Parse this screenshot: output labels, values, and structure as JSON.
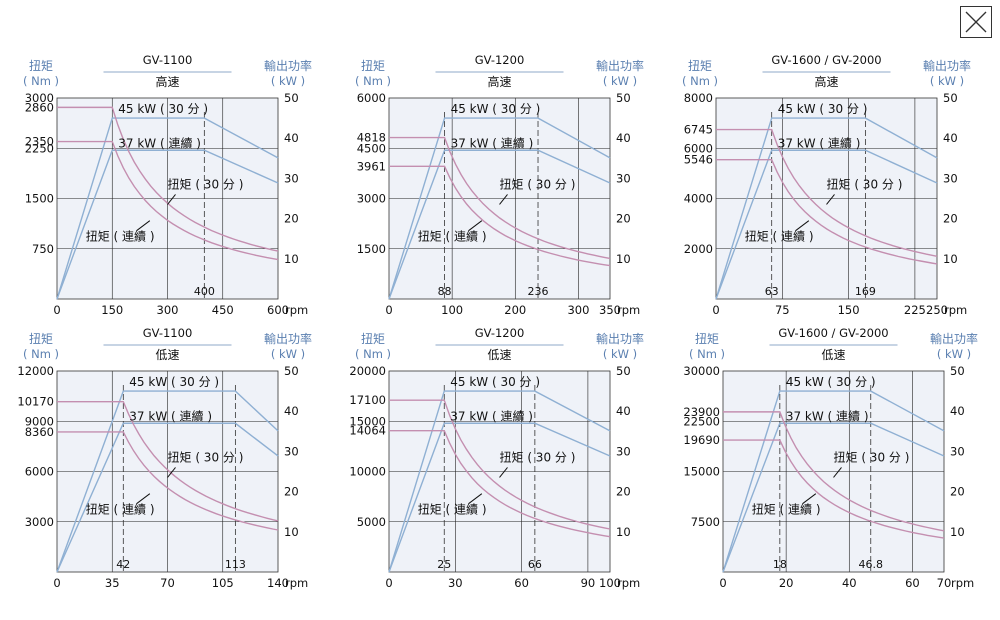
{
  "close_button": {
    "icon": "close-icon"
  },
  "colors": {
    "plot_bg": "#eff2f8",
    "power_line": "#8fb0d3",
    "torque_line": "#c48fb0",
    "axis_label": "#5a7fb0",
    "grid": "#222222"
  },
  "chart_data": [
    {
      "type": "line",
      "title": "GV-1100",
      "subtitle": "高速",
      "left_label": [
        "扭矩",
        "( Nm )"
      ],
      "right_label": [
        "輸出功率",
        "( kW )"
      ],
      "x_unit": "rpm",
      "xlim": [
        0,
        600
      ],
      "ylim_torque": [
        0,
        3000
      ],
      "ylim_power": [
        0,
        50
      ],
      "x_ticks": [
        "0",
        "150",
        "300",
        "450",
        "600"
      ],
      "x_grid": [
        150,
        300,
        450
      ],
      "y_ticks": [
        750,
        1500,
        2250,
        2350,
        2860,
        3000
      ],
      "y_grid": [
        750,
        1500,
        2250
      ],
      "power_ticks": [
        10,
        20,
        30,
        40,
        50
      ],
      "power_max": 50,
      "base_speed": 150,
      "max_speed": 600,
      "p30": 45,
      "pcont": 37,
      "t30": 2860,
      "tcont": 2350,
      "marks": [
        {
          "x": 400,
          "label": "400"
        }
      ],
      "series_labels": {
        "p30": "45 kW ( 30 分 )",
        "pcont": "37 kW ( 連續 )",
        "t30": "扭矩 ( 30 分 )",
        "tcont": "扭矩 ( 連續 )"
      }
    },
    {
      "type": "line",
      "title": "GV-1200",
      "subtitle": "高速",
      "left_label": [
        "扭矩",
        "( Nm )"
      ],
      "right_label": [
        "輸出功率",
        "( kW )"
      ],
      "x_unit": "rpm",
      "xlim": [
        0,
        350
      ],
      "ylim_torque": [
        0,
        6000
      ],
      "ylim_power": [
        0,
        50
      ],
      "x_ticks": [
        "0",
        "100",
        "200",
        "300",
        "350"
      ],
      "x_grid": [
        100,
        200,
        300
      ],
      "y_ticks": [
        1500,
        3000,
        3961,
        4500,
        4818,
        6000
      ],
      "y_grid": [
        1500,
        3000,
        4500
      ],
      "power_ticks": [
        10,
        20,
        30,
        40,
        50
      ],
      "power_max": 50,
      "base_speed": 88,
      "max_speed": 350,
      "p30": 45,
      "pcont": 37,
      "t30": 4818,
      "tcont": 3961,
      "marks": [
        {
          "x": 88,
          "label": "88"
        },
        {
          "x": 236,
          "label": "236"
        }
      ],
      "series_labels": {
        "p30": "45 kW ( 30 分 )",
        "pcont": "37 kW ( 連續 )",
        "t30": "扭矩 ( 30 分 )",
        "tcont": "扭矩 ( 連續 )"
      }
    },
    {
      "type": "line",
      "title": "GV-1600 / GV-2000",
      "subtitle": "高速",
      "left_label": [
        "扭矩",
        "( Nm )"
      ],
      "right_label": [
        "輸出功率",
        "( kW )"
      ],
      "x_unit": "rpm",
      "xlim": [
        0,
        250
      ],
      "ylim_torque": [
        0,
        8000
      ],
      "ylim_power": [
        0,
        50
      ],
      "x_ticks": [
        "0",
        "75",
        "150",
        "225",
        "250"
      ],
      "x_grid": [
        75,
        150,
        225
      ],
      "y_ticks": [
        2000,
        4000,
        5546,
        6000,
        6745,
        8000
      ],
      "y_grid": [
        2000,
        4000,
        6000
      ],
      "power_ticks": [
        10,
        20,
        30,
        40,
        50
      ],
      "power_max": 50,
      "base_speed": 63,
      "max_speed": 250,
      "p30": 45,
      "pcont": 37,
      "t30": 6745,
      "tcont": 5546,
      "marks": [
        {
          "x": 63,
          "label": "63"
        },
        {
          "x": 169,
          "label": "169"
        }
      ],
      "series_labels": {
        "p30": "45 kW ( 30 分 )",
        "pcont": "37 kW ( 連續 )",
        "t30": "扭矩 ( 30 分 )",
        "tcont": "扭矩 ( 連續 )"
      }
    },
    {
      "type": "line",
      "title": "GV-1100",
      "subtitle": "低速",
      "left_label": [
        "扭矩",
        "( Nm )"
      ],
      "right_label": [
        "輸出功率",
        "( kW )"
      ],
      "x_unit": "rpm",
      "xlim": [
        0,
        140
      ],
      "ylim_torque": [
        0,
        12000
      ],
      "ylim_power": [
        0,
        50
      ],
      "x_ticks": [
        "0",
        "35",
        "70",
        "105",
        "140"
      ],
      "x_grid": [
        35,
        70,
        105
      ],
      "y_ticks": [
        3000,
        6000,
        8360,
        9000,
        10170,
        12000
      ],
      "y_grid": [
        3000,
        6000,
        9000
      ],
      "power_ticks": [
        10,
        20,
        30,
        40,
        50
      ],
      "power_max": 50,
      "base_speed": 42,
      "max_speed": 140,
      "p30": 45,
      "pcont": 37,
      "t30": 10170,
      "tcont": 8360,
      "marks": [
        {
          "x": 42,
          "label": "42"
        },
        {
          "x": 113,
          "label": "113"
        }
      ],
      "series_labels": {
        "p30": "45 kW ( 30 分 )",
        "pcont": "37 kW ( 連續 )",
        "t30": "扭矩 ( 30 分 )",
        "tcont": "扭矩 ( 連續 )"
      }
    },
    {
      "type": "line",
      "title": "GV-1200",
      "subtitle": "低速",
      "left_label": [
        "扭矩",
        "( Nm )"
      ],
      "right_label": [
        "輸出功率",
        "( kW )"
      ],
      "x_unit": "rpm",
      "xlim": [
        0,
        100
      ],
      "ylim_torque": [
        0,
        20000
      ],
      "ylim_power": [
        0,
        50
      ],
      "x_ticks": [
        "0",
        "30",
        "60",
        "90",
        "100"
      ],
      "x_grid": [
        30,
        60,
        90
      ],
      "y_ticks": [
        5000,
        10000,
        14064,
        15000,
        17100,
        20000
      ],
      "y_grid": [
        5000,
        10000,
        15000
      ],
      "power_ticks": [
        10,
        20,
        30,
        40,
        50
      ],
      "power_max": 50,
      "base_speed": 25,
      "max_speed": 100,
      "p30": 45,
      "pcont": 37,
      "t30": 17100,
      "tcont": 14064,
      "marks": [
        {
          "x": 25,
          "label": "25"
        },
        {
          "x": 66,
          "label": "66"
        }
      ],
      "series_labels": {
        "p30": "45 kW ( 30 分 )",
        "pcont": "37 kW ( 連續 )",
        "t30": "扭矩 ( 30 分 )",
        "tcont": "扭矩 ( 連續 )"
      }
    },
    {
      "type": "line",
      "title": "GV-1600 / GV-2000",
      "subtitle": "低速",
      "left_label": [
        "扭矩",
        "( Nm )"
      ],
      "right_label": [
        "輸出功率",
        "( kW )"
      ],
      "x_unit": "rpm",
      "xlim": [
        0,
        70
      ],
      "ylim_torque": [
        0,
        30000
      ],
      "ylim_power": [
        0,
        50
      ],
      "x_ticks": [
        "0",
        "20",
        "40",
        "60",
        "70"
      ],
      "x_grid": [
        20,
        40,
        60
      ],
      "y_ticks": [
        7500,
        15000,
        19690,
        22500,
        23900,
        30000
      ],
      "y_grid": [
        7500,
        15000,
        22500
      ],
      "power_ticks": [
        10,
        20,
        30,
        40,
        50
      ],
      "power_max": 50,
      "base_speed": 18,
      "max_speed": 70,
      "p30": 45,
      "pcont": 37,
      "t30": 23900,
      "tcont": 19690,
      "marks": [
        {
          "x": 18,
          "label": "18"
        },
        {
          "x": 46.8,
          "label": "46.8"
        }
      ],
      "series_labels": {
        "p30": "45 kW ( 30 分 )",
        "pcont": "37 kW ( 連續 )",
        "t30": "扭矩 ( 30 分 )",
        "tcont": "扭矩 ( 連續 )"
      }
    }
  ]
}
